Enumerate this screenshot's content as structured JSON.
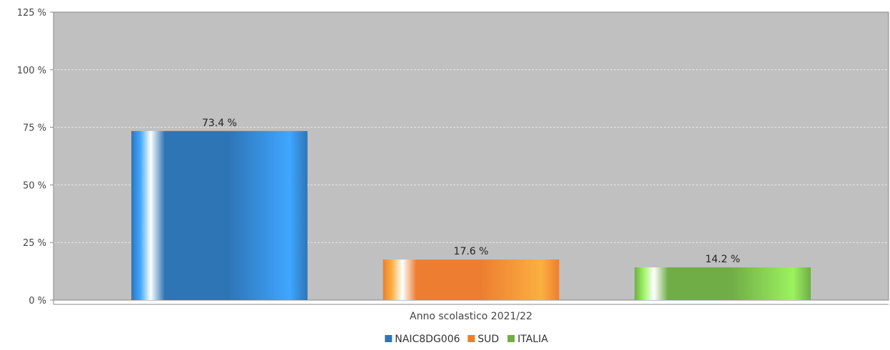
{
  "chart_data": {
    "type": "bar",
    "categories": [
      "Anno scolastico 2021/22"
    ],
    "series": [
      {
        "name": "NAIC8DG006",
        "value": 73.4,
        "label": "73.4 %",
        "color": "#2e75b6",
        "color_light": "#3fa6ff"
      },
      {
        "name": "SUD",
        "value": 17.6,
        "label": "17.6 %",
        "color": "#ed7d31",
        "color_light": "#fbb040"
      },
      {
        "name": "ITALIA",
        "value": 14.2,
        "label": "14.2 %",
        "color": "#70ad47",
        "color_light": "#9cf25f"
      }
    ],
    "ylim": [
      0,
      125
    ],
    "yticks": [
      0,
      25,
      50,
      75,
      100,
      125
    ],
    "ytick_labels": [
      "0 %",
      "25 %",
      "50 %",
      "75 %",
      "100 %",
      "125 %"
    ],
    "xlabel": "",
    "ylabel": "",
    "grid": true,
    "legend_position": "bottom-center",
    "plot_background": "#c0c0c0"
  }
}
